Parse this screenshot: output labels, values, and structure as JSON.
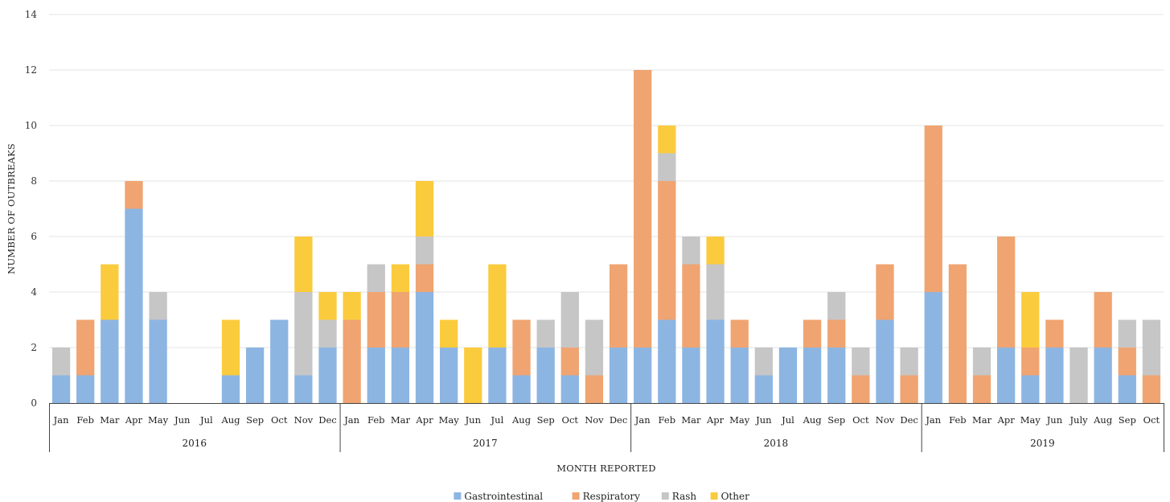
{
  "chart_data": {
    "type": "bar",
    "stacked": true,
    "title": "",
    "xlabel": "MONTH REPORTED",
    "ylabel": "NUMBER OF OUTBREAKS",
    "ylim": [
      0,
      14
    ],
    "yticks": [
      0,
      2,
      4,
      6,
      8,
      10,
      12,
      14
    ],
    "grid": true,
    "legend_position": "bottom",
    "years": [
      {
        "label": "2016",
        "months": [
          "Jan",
          "Feb",
          "Mar",
          "Apr",
          "May",
          "Jun",
          "Jul",
          "Aug",
          "Sep",
          "Oct",
          "Nov",
          "Dec"
        ]
      },
      {
        "label": "2017",
        "months": [
          "Jan",
          "Feb",
          "Mar",
          "Apr",
          "May",
          "Jun",
          "Jul",
          "Aug",
          "Sep",
          "Oct",
          "Nov",
          "Dec"
        ]
      },
      {
        "label": "2018",
        "months": [
          "Jan",
          "Feb",
          "Mar",
          "Apr",
          "May",
          "Jun",
          "Jul",
          "Aug",
          "Sep",
          "Oct",
          "Nov",
          "Dec"
        ]
      },
      {
        "label": "2019",
        "months": [
          "Jan",
          "Feb",
          "Mar",
          "Apr",
          "May",
          "Jun",
          "July",
          "Aug",
          "Sep",
          "Oct"
        ]
      }
    ],
    "series": [
      {
        "name": "Gastrointestinal",
        "color": "#8DB5E2",
        "values": [
          1,
          1,
          3,
          7,
          3,
          0,
          0,
          1,
          2,
          3,
          1,
          2,
          0,
          2,
          2,
          4,
          2,
          0,
          2,
          1,
          2,
          1,
          0,
          2,
          2,
          3,
          2,
          3,
          2,
          1,
          2,
          2,
          2,
          0,
          3,
          0,
          4,
          0,
          0,
          2,
          1,
          2,
          0,
          2,
          1,
          0
        ]
      },
      {
        "name": "Respiratory",
        "color": "#F0A471",
        "values": [
          0,
          2,
          0,
          1,
          0,
          0,
          0,
          0,
          0,
          0,
          0,
          0,
          3,
          2,
          2,
          1,
          0,
          0,
          0,
          2,
          0,
          1,
          1,
          3,
          10,
          5,
          3,
          0,
          1,
          0,
          0,
          1,
          1,
          1,
          2,
          1,
          6,
          5,
          1,
          4,
          1,
          1,
          0,
          2,
          1,
          1
        ]
      },
      {
        "name": "Rash",
        "color": "#C6C6C6",
        "values": [
          1,
          0,
          0,
          0,
          1,
          0,
          0,
          0,
          0,
          0,
          3,
          1,
          0,
          1,
          0,
          1,
          0,
          0,
          0,
          0,
          1,
          2,
          2,
          0,
          0,
          1,
          1,
          2,
          0,
          1,
          0,
          0,
          1,
          1,
          0,
          1,
          0,
          0,
          1,
          0,
          0,
          0,
          2,
          0,
          1,
          2
        ]
      },
      {
        "name": "Other",
        "color": "#FBCB3E",
        "values": [
          0,
          0,
          2,
          0,
          0,
          0,
          0,
          2,
          0,
          0,
          2,
          1,
          1,
          0,
          1,
          2,
          1,
          2,
          3,
          0,
          0,
          0,
          0,
          0,
          0,
          1,
          0,
          1,
          0,
          0,
          0,
          0,
          0,
          0,
          0,
          0,
          0,
          0,
          0,
          0,
          2,
          0,
          0,
          0,
          0,
          0
        ]
      }
    ]
  }
}
